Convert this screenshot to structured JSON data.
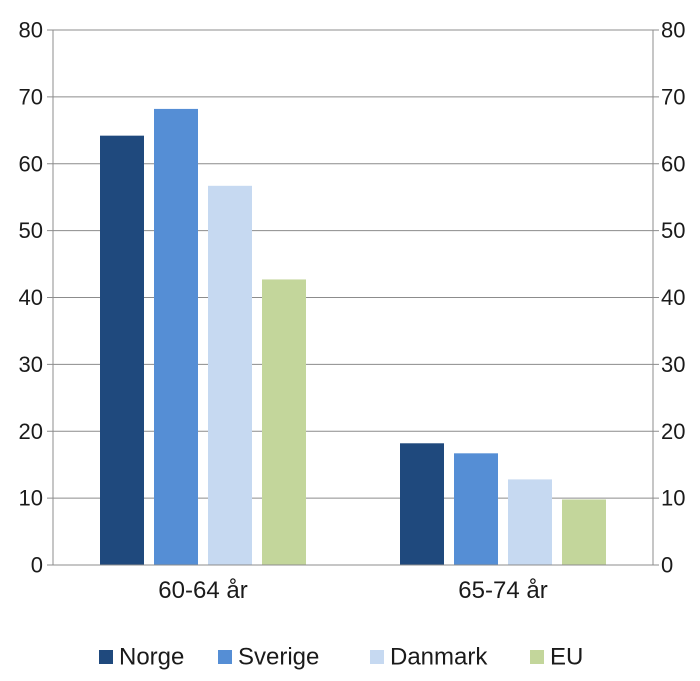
{
  "chart_data": {
    "type": "bar",
    "categories": [
      "60-64 år",
      "65-74 år"
    ],
    "series": [
      {
        "name": "Norge",
        "color": "#1f497d",
        "values": [
          64.2,
          18.2
        ]
      },
      {
        "name": "Sverige",
        "color": "#558ed5",
        "values": [
          68.2,
          16.7
        ]
      },
      {
        "name": "Danmark",
        "color": "#c6d9f1",
        "values": [
          56.7,
          12.8
        ]
      },
      {
        "name": "EU",
        "color": "#c3d69b",
        "values": [
          42.7,
          9.8
        ]
      }
    ],
    "ylim": [
      0,
      80
    ],
    "yticks": [
      0,
      10,
      20,
      30,
      40,
      50,
      60,
      70,
      80
    ],
    "y_axis_left_labels": [
      "0",
      "10",
      "20",
      "30",
      "40",
      "50",
      "60",
      "70",
      "80"
    ],
    "y_axis_right_labels": [
      "0",
      "10",
      "20",
      "30",
      "40",
      "50",
      "60",
      "70",
      "80"
    ],
    "grid": true,
    "legend_position": "bottom"
  }
}
